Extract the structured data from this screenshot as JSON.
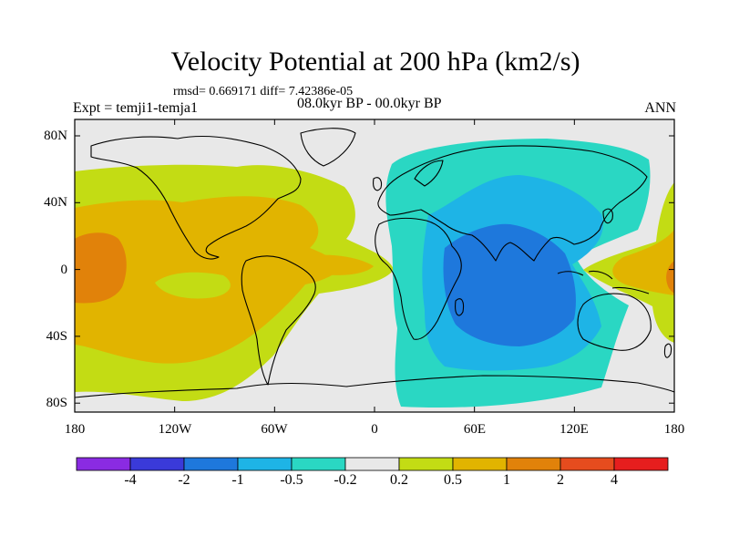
{
  "title": "Velocity Potential at 200 hPa (km2/s)",
  "stats": "rmsd= 0.669171 diff= 7.42386e-05",
  "experiment": "Expt = temji1-temja1",
  "period": "08.0kyr BP - 00.0kyr BP",
  "season": "ANN",
  "lat_labels": [
    "80N",
    "40N",
    "0",
    "40S",
    "80S"
  ],
  "lon_labels": [
    "180",
    "120W",
    "60W",
    "0",
    "60E",
    "120E",
    "180"
  ],
  "colorbar": {
    "colors": [
      "#8a2be2",
      "#3a3ad9",
      "#1e78dc",
      "#1eb4e6",
      "#2ad7c3",
      "#e8e8e8",
      "#c3dc14",
      "#e1b400",
      "#e1820a",
      "#e64c1e",
      "#e61e1e"
    ],
    "labels": [
      "-4",
      "-2",
      "-1",
      "-0.5",
      "-0.2",
      "0.2",
      "0.5",
      "1",
      "2",
      "4"
    ]
  },
  "palette": {
    "neutral": "#e8e8e8",
    "green": "#c3dc14",
    "yellow": "#e1b400",
    "orange": "#e1820a",
    "teal": "#2ad7c3",
    "cyan": "#1eb4e6",
    "blue": "#1e78dc"
  }
}
